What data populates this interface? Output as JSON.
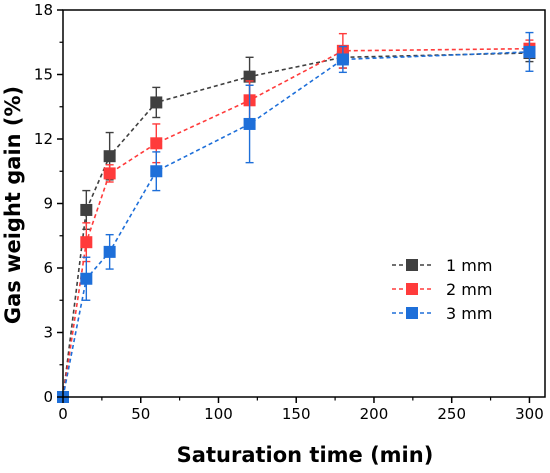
{
  "chart_data": {
    "type": "line",
    "xlabel": "Saturation time (min)",
    "ylabel": "Gas weight gain (%)",
    "xlim": [
      0,
      310
    ],
    "ylim": [
      0,
      18
    ],
    "xticks": [
      0,
      50,
      100,
      150,
      200,
      250,
      300
    ],
    "yticks": [
      0,
      3,
      6,
      9,
      12,
      15,
      18
    ],
    "grid": false,
    "legend_position": "center-right",
    "series": [
      {
        "name": "1 mm",
        "color": "#404040",
        "marker": "square",
        "line_style": "dashed",
        "x": [
          0,
          15,
          30,
          60,
          120,
          180,
          300
        ],
        "y": [
          0,
          8.7,
          11.2,
          13.7,
          14.9,
          15.8,
          16.0
        ],
        "error": [
          0,
          0.9,
          1.1,
          0.7,
          0.9,
          0.5,
          0.4
        ]
      },
      {
        "name": "2 mm",
        "color": "#ff3b3b",
        "marker": "square",
        "line_style": "dashed",
        "x": [
          0,
          15,
          30,
          60,
          120,
          180,
          300
        ],
        "y": [
          0,
          7.2,
          10.4,
          11.8,
          13.8,
          16.1,
          16.2
        ],
        "error": [
          0,
          0.9,
          0.4,
          0.9,
          0.9,
          0.8,
          0.4
        ]
      },
      {
        "name": "3 mm",
        "color": "#1e6fd9",
        "marker": "square",
        "line_style": "dashed",
        "x": [
          0,
          15,
          30,
          60,
          120,
          180,
          300
        ],
        "y": [
          0,
          5.5,
          6.75,
          10.5,
          12.7,
          15.7,
          16.05
        ],
        "error": [
          0,
          1.0,
          0.8,
          0.9,
          1.8,
          0.6,
          0.9
        ]
      }
    ]
  }
}
